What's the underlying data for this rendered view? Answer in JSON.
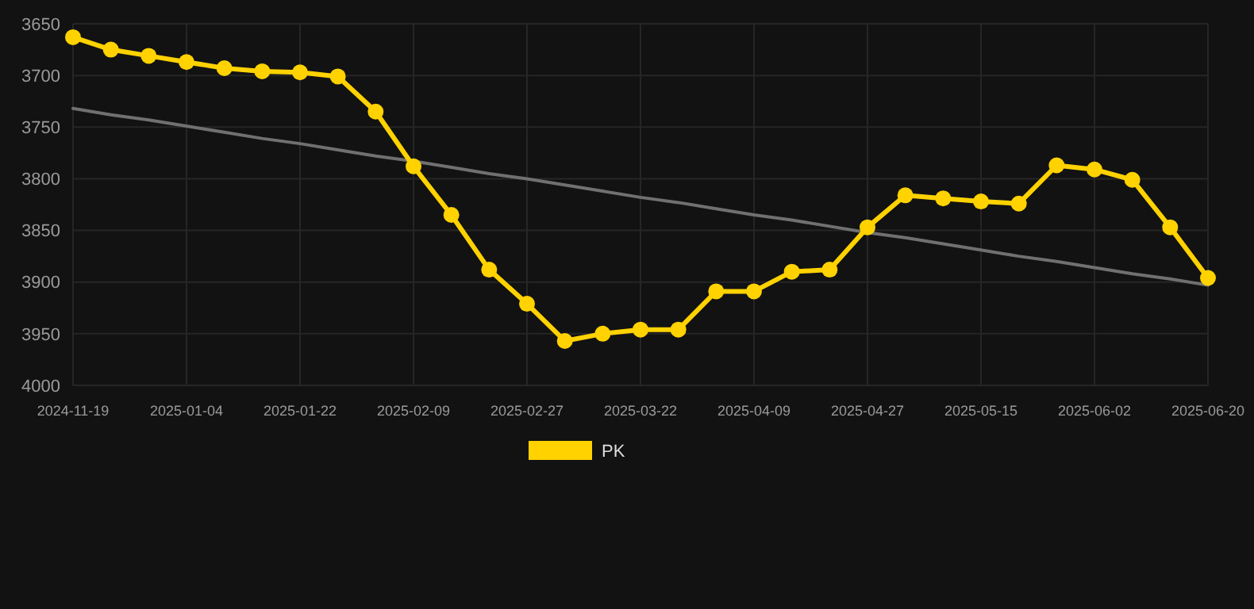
{
  "chart_data": {
    "type": "line",
    "categories": [
      "2024-11-19",
      null,
      null,
      "2025-01-04",
      null,
      null,
      "2025-01-22",
      null,
      null,
      "2025-02-09",
      null,
      null,
      "2025-02-27",
      null,
      null,
      "2025-03-22",
      null,
      null,
      "2025-04-09",
      null,
      null,
      "2025-04-27",
      null,
      null,
      "2025-05-15",
      null,
      null,
      "2025-06-02",
      null,
      null,
      "2025-06-20"
    ],
    "series": [
      {
        "name": "PK",
        "color": "#ffd200",
        "marker": "circle",
        "values": [
          3663,
          3675,
          3681,
          3687,
          3693,
          3696,
          3697,
          3701,
          3735,
          3788,
          3835,
          3888,
          3921,
          3957,
          3950,
          3946,
          3946,
          3909,
          3909,
          3890,
          3888,
          3847,
          3816,
          3819,
          3822,
          3824,
          3787,
          3791,
          3801,
          3847,
          3896
        ]
      },
      {
        "type": "line",
        "color": "#707070",
        "marker": "none",
        "values": [
          3732,
          3738,
          3743,
          3749,
          3755,
          3761,
          3766,
          3772,
          3778,
          3783,
          3789,
          3795,
          3800,
          3806,
          3812,
          3818,
          3823,
          3829,
          3835,
          3840,
          3846,
          3852,
          3857,
          3863,
          3869,
          3875,
          3880,
          3886,
          3892,
          3897,
          3903
        ]
      }
    ],
    "ylim": [
      4000,
      3650
    ],
    "yticks": [
      3650,
      3700,
      3750,
      3800,
      3850,
      3900,
      3950,
      4000
    ],
    "grid": true,
    "legend": "bottom",
    "line_style": "solid"
  }
}
